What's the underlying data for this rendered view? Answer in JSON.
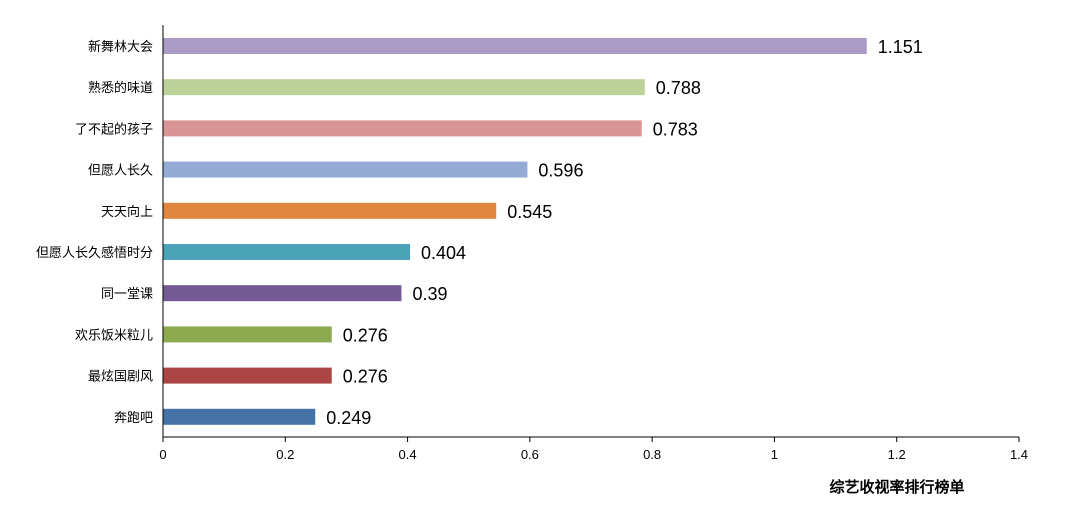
{
  "chart_data": {
    "type": "bar",
    "orientation": "horizontal",
    "title": "",
    "xlabel": "综艺收视率排行榜单",
    "ylabel": "",
    "xlim": [
      0,
      1.4
    ],
    "xticks": [
      0,
      0.2,
      0.4,
      0.6,
      0.8,
      1,
      1.2,
      1.4
    ],
    "xtick_labels": [
      "0",
      "0.2",
      "0.4",
      "0.6",
      "0.8",
      "1",
      "1.2",
      "1.4"
    ],
    "grid": false,
    "legend": "none",
    "categories": [
      "新舞林大会",
      "熟悉的味道",
      "了不起的孩子",
      "但愿人长久",
      "天天向上",
      "但愿人长久感悟时分",
      "同一堂课",
      "欢乐饭米粒儿",
      "最炫国剧风",
      "奔跑吧"
    ],
    "values": [
      1.151,
      0.788,
      0.783,
      0.596,
      0.545,
      0.404,
      0.39,
      0.276,
      0.276,
      0.249
    ],
    "value_labels": [
      "1.151",
      "0.788",
      "0.783",
      "0.596",
      "0.545",
      "0.404",
      "0.39",
      "0.276",
      "0.276",
      "0.249"
    ],
    "colors": [
      "#A99BC4",
      "#BDD19A",
      "#D99594",
      "#94ABD6",
      "#E0863F",
      "#4BA3B8",
      "#735A95",
      "#8CAB4F",
      "#AC4646",
      "#4573A7"
    ]
  }
}
